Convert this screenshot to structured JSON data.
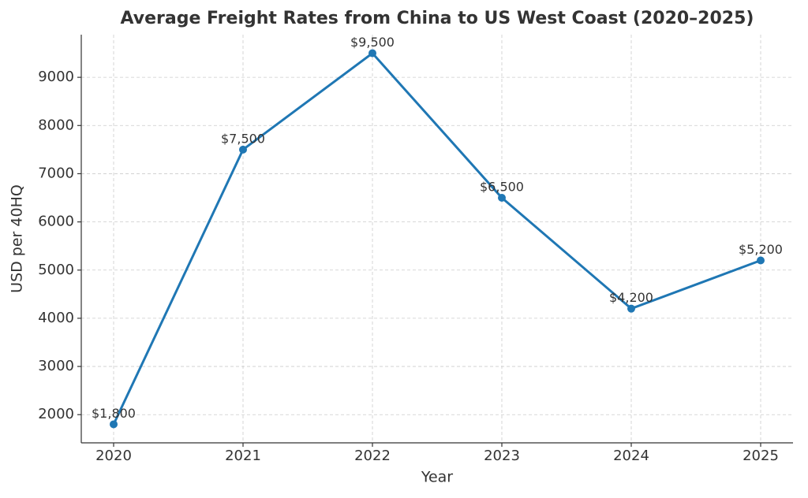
{
  "chart_data": {
    "type": "line",
    "title": "Average Freight Rates from China to US West Coast (2020–2025)",
    "x_label": "Year",
    "y_label": "USD per 40HQ",
    "x": [
      2020,
      2021,
      2022,
      2023,
      2024,
      2025
    ],
    "series": [
      {
        "color": "#1f77b4",
        "values": [
          1800,
          7500,
          9500,
          6500,
          4200,
          5200
        ],
        "value_labels": [
          "$1,800",
          "$7,500",
          "$9,500",
          "$6,500",
          "$4,200",
          "$5,200"
        ]
      }
    ],
    "xlim": [
      2019.75,
      2025.25
    ],
    "xticks": [
      2020,
      2021,
      2022,
      2023,
      2024,
      2025
    ],
    "ylim": [
      1415,
      9885
    ],
    "yticks": [
      2000,
      3000,
      4000,
      5000,
      6000,
      7000,
      8000,
      9000
    ],
    "grid": true
  }
}
